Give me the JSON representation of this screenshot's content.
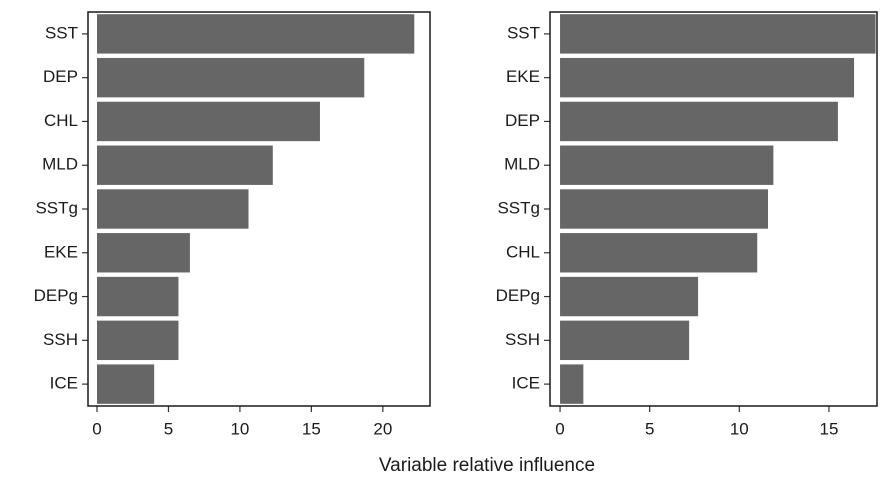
{
  "xlabel": "Variable relative influence",
  "chart_data": [
    {
      "type": "barh",
      "color": "#666666",
      "categories": [
        "SST",
        "DEP",
        "CHL",
        "MLD",
        "SSTg",
        "EKE",
        "DEPg",
        "SSH",
        "ICE"
      ],
      "values": [
        22.2,
        18.7,
        15.6,
        12.3,
        10.6,
        6.5,
        5.7,
        5.7,
        4.0
      ],
      "xlim": [
        -0.63,
        23.3
      ],
      "xticks": [
        0,
        5,
        10,
        15,
        20
      ]
    },
    {
      "type": "barh",
      "color": "#666666",
      "categories": [
        "SST",
        "EKE",
        "DEP",
        "MLD",
        "SSTg",
        "CHL",
        "DEPg",
        "SSH",
        "ICE"
      ],
      "values": [
        17.6,
        16.4,
        15.5,
        11.9,
        11.6,
        11.0,
        7.7,
        7.2,
        1.3
      ],
      "xlim": [
        -0.56,
        17.68
      ],
      "xticks": [
        0,
        5,
        10,
        15
      ]
    }
  ]
}
